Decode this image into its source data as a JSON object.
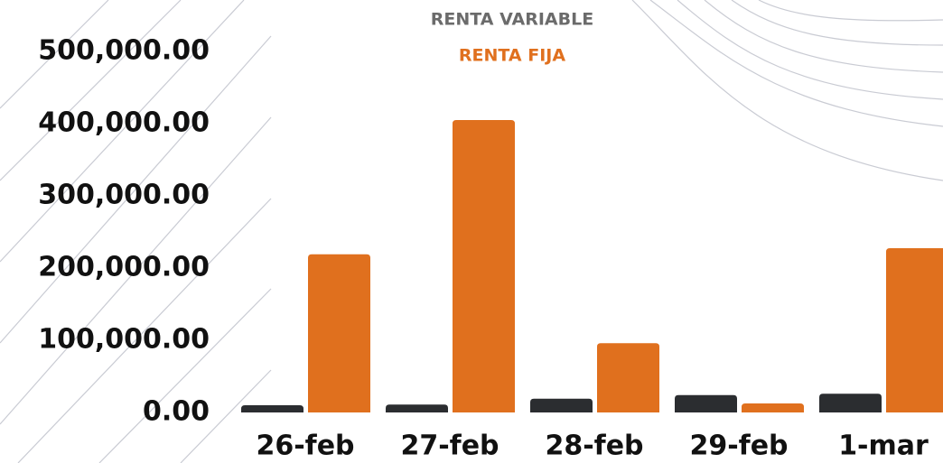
{
  "chart_data": {
    "type": "bar",
    "categories": [
      "26-feb",
      "27-feb",
      "28-feb",
      "29-feb",
      "1-mar"
    ],
    "series": [
      {
        "name": "RENTA VARIABLE",
        "color": "#2b2d30",
        "values": [
          10000,
          11000,
          19000,
          24000,
          26000
        ]
      },
      {
        "name": "RENTA FIJA",
        "color": "#e0701e",
        "values": [
          219000,
          405000,
          96000,
          12500,
          227500
        ]
      }
    ],
    "ylim": [
      0,
      500000
    ],
    "yticks": [
      {
        "value": 0,
        "label": "0.00"
      },
      {
        "value": 100000,
        "label": "100,000.00"
      },
      {
        "value": 200000,
        "label": "200,000.00"
      },
      {
        "value": 300000,
        "label": "300,000.00"
      },
      {
        "value": 400000,
        "label": "400,000.00"
      },
      {
        "value": 500000,
        "label": "500,000.00"
      }
    ],
    "grid": false
  }
}
